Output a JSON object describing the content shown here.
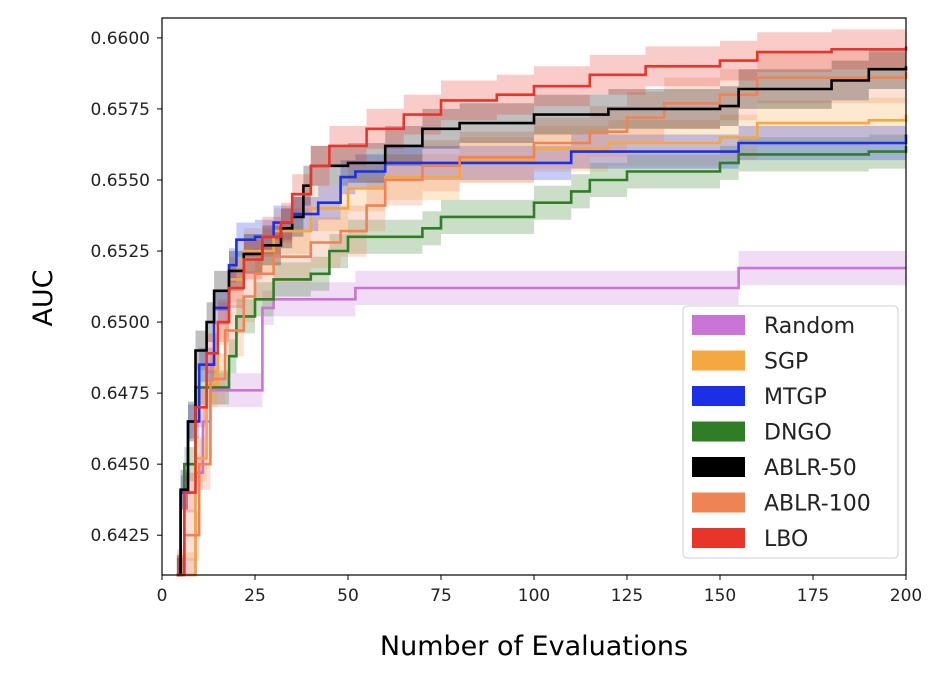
{
  "chart_data": {
    "type": "line",
    "title": "",
    "xlabel": "Number of Evaluations",
    "ylabel": "AUC",
    "xlim": [
      0,
      200
    ],
    "ylim": [
      0.6411,
      0.6607
    ],
    "xticks": [
      0,
      25,
      50,
      75,
      100,
      125,
      150,
      175,
      200
    ],
    "yticks": [
      "0.6425",
      "0.6450",
      "0.6475",
      "0.6500",
      "0.6525",
      "0.6550",
      "0.6575",
      "0.6600"
    ],
    "legend_position": "lower-right",
    "series": [
      {
        "name": "Random",
        "color": "#c975d6",
        "band": 0.0006,
        "points": [
          [
            4,
            0.6411
          ],
          [
            8,
            0.6411
          ],
          [
            9,
            0.6447
          ],
          [
            11,
            0.6465
          ],
          [
            13,
            0.6476
          ],
          [
            25,
            0.6476
          ],
          [
            27,
            0.6505
          ],
          [
            30,
            0.6508
          ],
          [
            50,
            0.6508
          ],
          [
            52,
            0.6512
          ],
          [
            150,
            0.6512
          ],
          [
            155,
            0.6519
          ],
          [
            200,
            0.6519
          ]
        ]
      },
      {
        "name": "SGP",
        "color": "#f5a742",
        "band": 0.0008,
        "points": [
          [
            4,
            0.6411
          ],
          [
            7,
            0.6411
          ],
          [
            9,
            0.6452
          ],
          [
            12,
            0.6478
          ],
          [
            15,
            0.65
          ],
          [
            18,
            0.6515
          ],
          [
            22,
            0.6525
          ],
          [
            30,
            0.6532
          ],
          [
            40,
            0.654
          ],
          [
            50,
            0.6547
          ],
          [
            60,
            0.6551
          ],
          [
            80,
            0.6557
          ],
          [
            100,
            0.6561
          ],
          [
            120,
            0.6563
          ],
          [
            150,
            0.6565
          ],
          [
            160,
            0.657
          ],
          [
            190,
            0.6571
          ],
          [
            200,
            0.6573
          ]
        ]
      },
      {
        "name": "MTGP",
        "color": "#1a2fe6",
        "band": 0.0006,
        "points": [
          [
            4,
            0.6411
          ],
          [
            5,
            0.644
          ],
          [
            7,
            0.6465
          ],
          [
            10,
            0.6485
          ],
          [
            14,
            0.6505
          ],
          [
            18,
            0.652
          ],
          [
            20,
            0.6529
          ],
          [
            25,
            0.653
          ],
          [
            30,
            0.6535
          ],
          [
            35,
            0.6538
          ],
          [
            42,
            0.6542
          ],
          [
            48,
            0.6551
          ],
          [
            52,
            0.6553
          ],
          [
            60,
            0.6556
          ],
          [
            100,
            0.6556
          ],
          [
            110,
            0.656
          ],
          [
            150,
            0.656
          ],
          [
            155,
            0.6563
          ],
          [
            200,
            0.6566
          ]
        ]
      },
      {
        "name": "DNGO",
        "color": "#2f7d25",
        "band": 0.0006,
        "points": [
          [
            4,
            0.6411
          ],
          [
            6,
            0.645
          ],
          [
            9,
            0.6477
          ],
          [
            13,
            0.6477
          ],
          [
            18,
            0.6488
          ],
          [
            20,
            0.6502
          ],
          [
            25,
            0.6508
          ],
          [
            30,
            0.6515
          ],
          [
            40,
            0.6517
          ],
          [
            45,
            0.6525
          ],
          [
            50,
            0.653
          ],
          [
            70,
            0.6533
          ],
          [
            75,
            0.6537
          ],
          [
            100,
            0.6542
          ],
          [
            110,
            0.6546
          ],
          [
            115,
            0.655
          ],
          [
            125,
            0.6553
          ],
          [
            150,
            0.6556
          ],
          [
            155,
            0.6559
          ],
          [
            190,
            0.656
          ],
          [
            200,
            0.6562
          ]
        ]
      },
      {
        "name": "ABLR-50",
        "color": "#000000",
        "band": 0.0007,
        "points": [
          [
            4,
            0.6411
          ],
          [
            5,
            0.6441
          ],
          [
            7,
            0.6465
          ],
          [
            9,
            0.649
          ],
          [
            12,
            0.65
          ],
          [
            14,
            0.6511
          ],
          [
            18,
            0.6518
          ],
          [
            22,
            0.6524
          ],
          [
            27,
            0.6527
          ],
          [
            32,
            0.6533
          ],
          [
            35,
            0.6537
          ],
          [
            38,
            0.6548
          ],
          [
            40,
            0.6555
          ],
          [
            50,
            0.6556
          ],
          [
            60,
            0.6562
          ],
          [
            70,
            0.6568
          ],
          [
            80,
            0.657
          ],
          [
            100,
            0.6573
          ],
          [
            120,
            0.6575
          ],
          [
            150,
            0.6576
          ],
          [
            155,
            0.6582
          ],
          [
            180,
            0.6585
          ],
          [
            190,
            0.6589
          ],
          [
            200,
            0.659
          ]
        ]
      },
      {
        "name": "ABLR-100",
        "color": "#ee8356",
        "band": 0.0009,
        "points": [
          [
            4,
            0.6411
          ],
          [
            6,
            0.6425
          ],
          [
            10,
            0.645
          ],
          [
            13,
            0.648
          ],
          [
            17,
            0.6497
          ],
          [
            22,
            0.6509
          ],
          [
            25,
            0.6517
          ],
          [
            30,
            0.6523
          ],
          [
            40,
            0.6528
          ],
          [
            48,
            0.6532
          ],
          [
            55,
            0.6541
          ],
          [
            60,
            0.655
          ],
          [
            70,
            0.6555
          ],
          [
            80,
            0.6558
          ],
          [
            100,
            0.6563
          ],
          [
            115,
            0.6567
          ],
          [
            125,
            0.6572
          ],
          [
            135,
            0.6577
          ],
          [
            150,
            0.658
          ],
          [
            160,
            0.6586
          ],
          [
            200,
            0.6588
          ]
        ]
      },
      {
        "name": "LBO",
        "color": "#e8352a",
        "band": 0.0007,
        "points": [
          [
            4,
            0.6411
          ],
          [
            6,
            0.644
          ],
          [
            9,
            0.647
          ],
          [
            12,
            0.6489
          ],
          [
            15,
            0.65
          ],
          [
            18,
            0.6512
          ],
          [
            22,
            0.6522
          ],
          [
            27,
            0.653
          ],
          [
            32,
            0.6535
          ],
          [
            35,
            0.6545
          ],
          [
            40,
            0.6555
          ],
          [
            45,
            0.6562
          ],
          [
            55,
            0.6568
          ],
          [
            65,
            0.6573
          ],
          [
            75,
            0.6578
          ],
          [
            90,
            0.658
          ],
          [
            100,
            0.6583
          ],
          [
            115,
            0.6587
          ],
          [
            130,
            0.659
          ],
          [
            150,
            0.6592
          ],
          [
            160,
            0.6595
          ],
          [
            180,
            0.6596
          ],
          [
            200,
            0.6597
          ]
        ]
      }
    ]
  }
}
